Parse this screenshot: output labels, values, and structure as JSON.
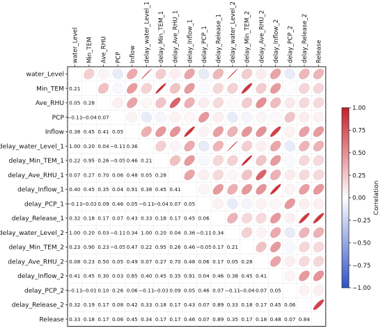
{
  "chart_data": {
    "type": "heatmap",
    "title": "",
    "variables": [
      "water_Level",
      "Min_TEM",
      "Ave_RHU",
      "PCP",
      "Inflow",
      "delay_water_Level_1",
      "delay_Min_TEM_1",
      "delay_Ave_RHU_1",
      "delay_Inflow_1",
      "delay_PCP_1",
      "delay_Release_1",
      "delay_water_Level_2",
      "delay_Min_TEM_2",
      "delay_Ave_RHU_2",
      "delay_Inflow_2",
      "delay_PCP_2",
      "delay_Release_2",
      "Release"
    ],
    "lower_triangle_labels": [
      [],
      [
        "0.21"
      ],
      [
        "0.05",
        "0.28"
      ],
      [
        "−0.11",
        "−0.04",
        "0.07"
      ],
      [
        "0.38",
        "0.45",
        "0.41",
        "0.05"
      ],
      [
        "1.00",
        "0.20",
        "0.04",
        "−0.11",
        "0.36"
      ],
      [
        "0.22",
        "0.95",
        "0.26",
        "−0.05",
        "0.46",
        "0.21"
      ],
      [
        "0.07",
        "0.27",
        "0.70",
        "0.06",
        "0.48",
        "0.05",
        "0.28"
      ],
      [
        "0.40",
        "0.45",
        "0.35",
        "0.04",
        "0.91",
        "0.38",
        "0.45",
        "0.41"
      ],
      [
        "−0.11",
        "−0.03",
        "0.09",
        "0.46",
        "0.05",
        "−0.11",
        "−0.04",
        "0.07",
        "0.05"
      ],
      [
        "0.32",
        "0.18",
        "0.17",
        "0.07",
        "0.43",
        "0.33",
        "0.18",
        "0.17",
        "0.45",
        "0.06"
      ],
      [
        "1.00",
        "0.20",
        "0.03",
        "−0.11",
        "0.34",
        "1.00",
        "0.20",
        "0.04",
        "0.36",
        "−0.11",
        "0.34"
      ],
      [
        "0.23",
        "0.90",
        "0.23",
        "−0.05",
        "0.47",
        "0.22",
        "0.95",
        "0.26",
        "0.46",
        "−0.05",
        "0.17",
        "0.21"
      ],
      [
        "0.08",
        "0.23",
        "0.50",
        "0.05",
        "0.49",
        "0.07",
        "0.27",
        "0.70",
        "0.48",
        "0.06",
        "0.17",
        "0.05",
        "0.28"
      ],
      [
        "0.41",
        "0.45",
        "0.30",
        "0.03",
        "0.85",
        "0.40",
        "0.45",
        "0.35",
        "0.91",
        "0.04",
        "0.46",
        "0.38",
        "0.45",
        "0.41"
      ],
      [
        "−0.11",
        "−0.01",
        "0.10",
        "0.26",
        "0.06",
        "−0.11",
        "−0.03",
        "0.09",
        "0.05",
        "0.46",
        "0.07",
        "−0.11",
        "−0.04",
        "0.07",
        "0.05"
      ],
      [
        "0.32",
        "0.19",
        "0.17",
        "0.08",
        "0.42",
        "0.33",
        "0.18",
        "0.17",
        "0.43",
        "0.07",
        "0.89",
        "0.33",
        "0.18",
        "0.17",
        "0.45",
        "0.06"
      ],
      [
        "0.33",
        "0.18",
        "0.17",
        "0.06",
        "0.45",
        "0.34",
        "0.17",
        "0.17",
        "0.46",
        "0.07",
        "0.89",
        "0.35",
        "0.17",
        "0.18",
        "0.48",
        "0.07",
        "0.84"
      ]
    ],
    "upper_triangle": "ellipses (shape and color encode correlation; mirror of lower triangle)",
    "colorbar": {
      "label": "Correlation",
      "range": [
        -1.0,
        1.0
      ],
      "ticks": [
        "1.00",
        "0.75",
        "0.50",
        "0.25",
        "0.00",
        "−0.25",
        "−0.50",
        "−0.75",
        "−1.00"
      ],
      "colors": {
        "negative": "#2f52c8",
        "zero": "#ffffff",
        "positive": "#c8202a"
      }
    }
  }
}
